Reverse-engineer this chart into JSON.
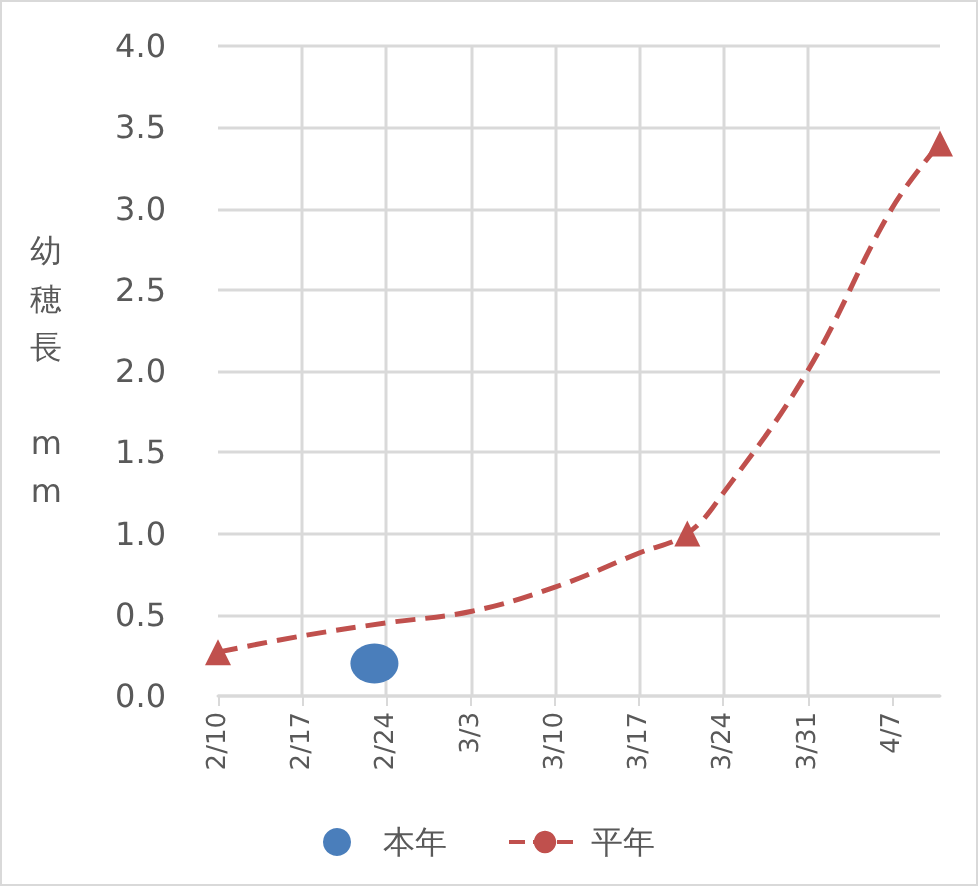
{
  "chart_data": {
    "type": "line",
    "ylabel": "幼穂長 mm",
    "xlim": [
      "--02-10",
      "--04-11"
    ],
    "xticks": [
      {
        "value": "--02-10",
        "label": "2/10"
      },
      {
        "value": "--02-17",
        "label": "2/17"
      },
      {
        "value": "--02-24",
        "label": "2/24"
      },
      {
        "value": "--03-03",
        "label": "3/3"
      },
      {
        "value": "--03-10",
        "label": "3/10"
      },
      {
        "value": "--03-17",
        "label": "3/17"
      },
      {
        "value": "--03-24",
        "label": "3/24"
      },
      {
        "value": "--03-31",
        "label": "3/31"
      },
      {
        "value": "--04-07",
        "label": "4/7"
      }
    ],
    "ylim": [
      0,
      4
    ],
    "yticks": [
      {
        "value": 0,
        "label": "0.0"
      },
      {
        "value": 0.5,
        "label": "0.5"
      },
      {
        "value": 1,
        "label": "1.0"
      },
      {
        "value": 1.5,
        "label": "1.5"
      },
      {
        "value": 2,
        "label": "2.0"
      },
      {
        "value": 2.5,
        "label": "2.5"
      },
      {
        "value": 3,
        "label": "3.0"
      },
      {
        "value": 3.5,
        "label": "3.5"
      },
      {
        "value": 4,
        "label": "4.0"
      }
    ],
    "series": [
      {
        "name": "本年",
        "type": "scatter",
        "color": "#4a7ebb",
        "marker": "circle",
        "x": [
          "--02-23"
        ],
        "values": [
          0.2
        ]
      },
      {
        "name": "平年",
        "color": "#c0504d",
        "marker": "none",
        "line_style": "dashed",
        "x": [
          "--02-10",
          "--02-17",
          "--02-24",
          "--03-03",
          "--03-10",
          "--03-17",
          "--03-21",
          "--03-24",
          "--03-31",
          "--04-07",
          "--04-11"
        ],
        "values": [
          0.27,
          0.37,
          0.45,
          0.52,
          0.67,
          0.88,
          1.0,
          1.25,
          2.0,
          3.0,
          3.4
        ]
      },
      {
        "type": "scatter",
        "color": "#c0504d",
        "marker": "triangle",
        "x": [
          "--02-10",
          "--03-21",
          "--04-11"
        ],
        "values": [
          0.27,
          1.0,
          3.4
        ]
      }
    ],
    "grid": true,
    "legend": "bottom"
  }
}
